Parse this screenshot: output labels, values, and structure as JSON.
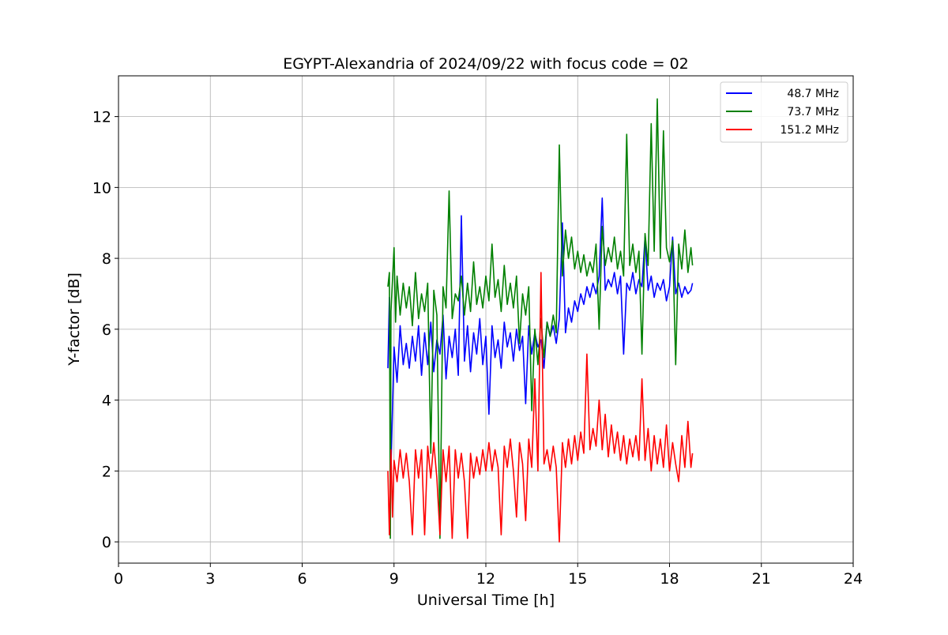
{
  "chart_data": {
    "type": "line",
    "title": "EGYPT-Alexandria of 2024/09/22 with focus code = 02",
    "xlabel": "Universal Time [h]",
    "ylabel": "Y-factor [dB]",
    "xlim": [
      0,
      24
    ],
    "ylim": [
      -0.6,
      13.15
    ],
    "x_ticks": [
      0,
      3,
      6,
      9,
      12,
      15,
      18,
      21,
      24
    ],
    "y_ticks": [
      0,
      2,
      4,
      6,
      8,
      10,
      12
    ],
    "grid": true,
    "legend_position": "top-right",
    "series": [
      {
        "name": "48.7 MHz",
        "color": "#0000ff",
        "x": [
          8.8,
          8.85,
          8.9,
          9.0,
          9.1,
          9.2,
          9.3,
          9.4,
          9.5,
          9.6,
          9.7,
          9.8,
          9.9,
          10.0,
          10.1,
          10.2,
          10.3,
          10.4,
          10.5,
          10.6,
          10.7,
          10.8,
          10.9,
          11.0,
          11.1,
          11.2,
          11.3,
          11.4,
          11.5,
          11.6,
          11.7,
          11.8,
          11.9,
          12.0,
          12.1,
          12.2,
          12.3,
          12.4,
          12.5,
          12.6,
          12.7,
          12.8,
          12.9,
          13.0,
          13.1,
          13.2,
          13.3,
          13.4,
          13.5,
          13.6,
          13.7,
          13.8,
          13.9,
          14.0,
          14.1,
          14.2,
          14.3,
          14.4,
          14.5,
          14.6,
          14.7,
          14.8,
          14.9,
          15.0,
          15.1,
          15.2,
          15.3,
          15.4,
          15.5,
          15.6,
          15.7,
          15.8,
          15.9,
          16.0,
          16.1,
          16.2,
          16.3,
          16.4,
          16.5,
          16.6,
          16.7,
          16.8,
          16.9,
          17.0,
          17.1,
          17.2,
          17.3,
          17.4,
          17.5,
          17.6,
          17.7,
          17.8,
          17.9,
          18.0,
          18.1,
          18.2,
          18.3,
          18.4,
          18.5,
          18.6,
          18.7,
          18.75
        ],
        "y": [
          4.9,
          6.9,
          2.1,
          5.5,
          4.5,
          6.1,
          5.0,
          5.6,
          4.9,
          5.8,
          5.1,
          6.1,
          4.7,
          5.9,
          5.0,
          6.2,
          4.8,
          5.7,
          5.3,
          6.4,
          4.6,
          5.8,
          5.2,
          6.0,
          4.7,
          9.2,
          5.1,
          6.1,
          4.8,
          5.9,
          5.3,
          6.3,
          5.0,
          5.8,
          3.6,
          6.1,
          5.2,
          5.7,
          4.9,
          6.2,
          5.5,
          5.9,
          5.1,
          6.0,
          5.4,
          5.8,
          3.9,
          6.1,
          5.3,
          5.9,
          5.5,
          5.7,
          4.9,
          6.2,
          5.8,
          6.1,
          5.6,
          6.3,
          9.0,
          5.9,
          6.6,
          6.2,
          6.8,
          6.5,
          7.0,
          6.7,
          7.2,
          6.9,
          7.3,
          7.0,
          7.5,
          9.7,
          7.1,
          7.4,
          7.2,
          7.6,
          7.0,
          7.5,
          5.3,
          7.3,
          7.1,
          7.6,
          7.0,
          7.4,
          7.2,
          8.6,
          7.1,
          7.5,
          6.9,
          7.3,
          7.1,
          7.4,
          6.8,
          7.2,
          8.6,
          7.0,
          7.3,
          6.9,
          7.2,
          7.0,
          7.1,
          7.3
        ]
      },
      {
        "name": "73.7 MHz",
        "color": "#008000",
        "x": [
          8.8,
          8.85,
          8.88,
          8.9,
          9.0,
          9.05,
          9.1,
          9.2,
          9.3,
          9.4,
          9.5,
          9.6,
          9.7,
          9.8,
          9.9,
          10.0,
          10.1,
          10.2,
          10.3,
          10.4,
          10.5,
          10.6,
          10.7,
          10.8,
          10.9,
          11.0,
          11.1,
          11.2,
          11.3,
          11.4,
          11.5,
          11.6,
          11.7,
          11.8,
          11.9,
          12.0,
          12.1,
          12.2,
          12.3,
          12.4,
          12.5,
          12.6,
          12.7,
          12.8,
          12.9,
          13.0,
          13.1,
          13.2,
          13.3,
          13.4,
          13.5,
          13.6,
          13.7,
          13.8,
          13.9,
          14.0,
          14.1,
          14.2,
          14.3,
          14.4,
          14.5,
          14.6,
          14.7,
          14.8,
          14.9,
          15.0,
          15.1,
          15.2,
          15.3,
          15.4,
          15.5,
          15.6,
          15.7,
          15.8,
          15.9,
          16.0,
          16.1,
          16.2,
          16.3,
          16.4,
          16.5,
          16.6,
          16.7,
          16.8,
          16.9,
          17.0,
          17.1,
          17.2,
          17.3,
          17.4,
          17.5,
          17.6,
          17.7,
          17.8,
          17.9,
          18.0,
          18.1,
          18.2,
          18.3,
          18.4,
          18.5,
          18.6,
          18.7,
          18.75
        ],
        "y": [
          7.2,
          7.6,
          0.1,
          6.5,
          8.3,
          6.2,
          7.5,
          6.4,
          7.3,
          6.6,
          7.2,
          6.1,
          7.6,
          6.3,
          7.0,
          6.5,
          7.3,
          2.5,
          7.1,
          6.4,
          0.1,
          7.2,
          6.6,
          9.9,
          6.3,
          7.0,
          6.8,
          7.5,
          6.4,
          7.3,
          6.5,
          7.9,
          6.7,
          7.2,
          6.6,
          7.5,
          6.8,
          8.4,
          6.9,
          7.4,
          6.5,
          7.8,
          6.7,
          7.3,
          6.6,
          7.5,
          5.6,
          7.0,
          6.4,
          7.2,
          3.7,
          6.0,
          5.0,
          6.3,
          5.2,
          6.2,
          5.8,
          6.4,
          5.9,
          11.2,
          7.5,
          8.8,
          8.0,
          8.6,
          7.7,
          8.2,
          7.6,
          8.1,
          7.5,
          7.9,
          7.6,
          8.4,
          6.0,
          8.9,
          7.8,
          8.3,
          7.9,
          8.6,
          7.7,
          8.2,
          7.5,
          11.5,
          7.8,
          8.4,
          7.6,
          8.2,
          5.3,
          8.7,
          7.8,
          11.8,
          8.2,
          12.5,
          8.0,
          11.6,
          8.3,
          7.9,
          8.5,
          5.0,
          8.4,
          7.7,
          8.8,
          7.6,
          8.3,
          7.8
        ]
      },
      {
        "name": "151.2 MHz",
        "color": "#ff0000",
        "x": [
          8.8,
          8.85,
          8.9,
          8.95,
          9.0,
          9.1,
          9.2,
          9.3,
          9.4,
          9.5,
          9.6,
          9.7,
          9.8,
          9.9,
          10.0,
          10.1,
          10.2,
          10.3,
          10.4,
          10.5,
          10.6,
          10.7,
          10.8,
          10.9,
          11.0,
          11.1,
          11.2,
          11.3,
          11.4,
          11.5,
          11.6,
          11.7,
          11.8,
          11.9,
          12.0,
          12.1,
          12.2,
          12.3,
          12.4,
          12.5,
          12.6,
          12.7,
          12.8,
          12.9,
          13.0,
          13.1,
          13.2,
          13.3,
          13.4,
          13.5,
          13.6,
          13.7,
          13.8,
          13.9,
          14.0,
          14.1,
          14.2,
          14.3,
          14.4,
          14.5,
          14.6,
          14.7,
          14.8,
          14.9,
          15.0,
          15.1,
          15.2,
          15.3,
          15.4,
          15.5,
          15.6,
          15.7,
          15.8,
          15.9,
          16.0,
          16.1,
          16.2,
          16.3,
          16.4,
          16.5,
          16.6,
          16.7,
          16.8,
          16.9,
          17.0,
          17.1,
          17.2,
          17.3,
          17.4,
          17.5,
          17.6,
          17.7,
          17.8,
          17.9,
          18.0,
          18.1,
          18.2,
          18.3,
          18.4,
          18.5,
          18.6,
          18.7,
          18.75
        ],
        "y": [
          2.0,
          0.2,
          2.6,
          0.7,
          2.3,
          1.7,
          2.6,
          1.8,
          2.5,
          1.7,
          0.2,
          2.6,
          1.8,
          2.6,
          0.2,
          2.7,
          1.8,
          2.8,
          1.8,
          0.2,
          2.6,
          1.7,
          2.7,
          0.1,
          2.6,
          1.8,
          2.5,
          1.7,
          0.1,
          2.5,
          1.8,
          2.4,
          1.9,
          2.6,
          2.0,
          2.8,
          2.0,
          2.6,
          2.1,
          0.2,
          2.7,
          2.1,
          2.9,
          2.0,
          0.7,
          2.8,
          2.2,
          0.6,
          2.9,
          2.1,
          4.6,
          2.0,
          7.6,
          2.2,
          2.6,
          2.0,
          2.7,
          2.1,
          0.0,
          2.8,
          2.1,
          2.9,
          2.2,
          3.0,
          2.3,
          3.1,
          2.5,
          5.3,
          2.6,
          3.2,
          2.7,
          4.0,
          2.6,
          3.6,
          2.4,
          3.3,
          2.5,
          3.1,
          2.3,
          3.0,
          2.2,
          2.9,
          2.4,
          3.0,
          2.3,
          4.6,
          2.3,
          3.2,
          2.0,
          3.0,
          2.2,
          2.9,
          2.1,
          3.3,
          2.0,
          2.8,
          2.2,
          1.7,
          3.0,
          2.1,
          3.4,
          2.1,
          2.5
        ]
      }
    ]
  }
}
